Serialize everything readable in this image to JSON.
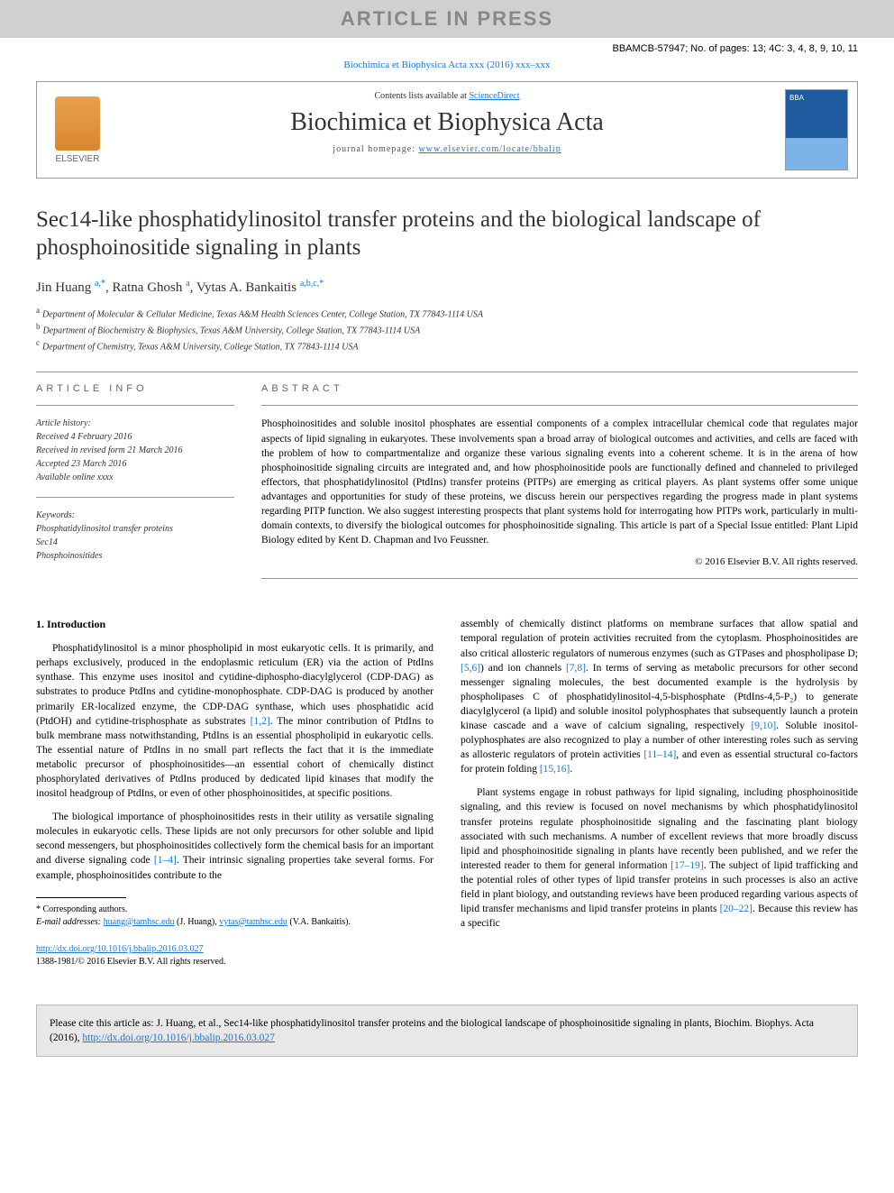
{
  "banner": "ARTICLE IN PRESS",
  "corrected_proof": "BBAMCB-57947; No. of pages: 13; 4C: 3, 4, 8, 9, 10, 11",
  "journal_ref": "Biochimica et Biophysica Acta xxx (2016) xxx–xxx",
  "header": {
    "publisher": "ELSEVIER",
    "contents_prefix": "Contents lists available at ",
    "contents_link": "ScienceDirect",
    "journal_name": "Biochimica et Biophysica Acta",
    "homepage_prefix": "journal homepage: ",
    "homepage_url": "www.elsevier.com/locate/bbalip"
  },
  "title": "Sec14-like phosphatidylinositol transfer proteins and the biological landscape of phosphoinositide signaling in plants",
  "authors_html": "Jin Huang <sup>a,*</sup>, Ratna Ghosh <sup>a</sup>, Vytas A. Bankaitis <sup>a,b,c,*</sup>",
  "affiliations": [
    {
      "sup": "a",
      "text": "Department of Molecular & Cellular Medicine, Texas A&M Health Sciences Center, College Station, TX 77843-1114 USA"
    },
    {
      "sup": "b",
      "text": "Department of Biochemistry & Biophysics, Texas A&M University, College Station, TX 77843-1114 USA"
    },
    {
      "sup": "c",
      "text": "Department of Chemistry, Texas A&M University, College Station, TX 77843-1114 USA"
    }
  ],
  "article_info": {
    "label": "ARTICLE INFO",
    "history_label": "Article history:",
    "history": [
      "Received 4 February 2016",
      "Received in revised form 21 March 2016",
      "Accepted 23 March 2016",
      "Available online xxxx"
    ],
    "keywords_label": "Keywords:",
    "keywords": [
      "Phosphatidylinositol transfer proteins",
      "Sec14",
      "Phosphoinositides"
    ]
  },
  "abstract": {
    "label": "ABSTRACT",
    "text": "Phosphoinositides and soluble inositol phosphates are essential components of a complex intracellular chemical code that regulates major aspects of lipid signaling in eukaryotes. These involvements span a broad array of biological outcomes and activities, and cells are faced with the problem of how to compartmentalize and organize these various signaling events into a coherent scheme. It is in the arena of how phosphoinositide signaling circuits are integrated and, and how phosphoinositide pools are functionally defined and channeled to privileged effectors, that phosphatidylinositol (PtdIns) transfer proteins (PITPs) are emerging as critical players. As plant systems offer some unique advantages and opportunities for study of these proteins, we discuss herein our perspectives regarding the progress made in plant systems regarding PITP function. We also suggest interesting prospects that plant systems hold for interrogating how PITPs work, particularly in multi-domain contexts, to diversify the biological outcomes for phosphoinositide signaling. This article is part of a Special Issue entitled: Plant Lipid Biology edited by Kent D. Chapman and Ivo Feussner.",
    "copyright": "© 2016 Elsevier B.V. All rights reserved."
  },
  "intro": {
    "heading": "1. Introduction",
    "col1": [
      "Phosphatidylinositol is a minor phospholipid in most eukaryotic cells. It is primarily, and perhaps exclusively, produced in the endoplasmic reticulum (ER) via the action of PtdIns synthase. This enzyme uses inositol and cytidine-diphospho-diacylglycerol (CDP-DAG) as substrates to produce PtdIns and cytidine-monophosphate. CDP-DAG is produced by another primarily ER-localized enzyme, the CDP-DAG synthase, which uses phosphatidic acid (PtdOH) and cytidine-trisphosphate as substrates [1,2]. The minor contribution of PtdIns to bulk membrane mass notwithstanding, PtdIns is an essential phospholipid in eukaryotic cells. The essential nature of PtdIns in no small part reflects the fact that it is the immediate metabolic precursor of phosphoinositides—an essential cohort of chemically distinct phosphorylated derivatives of PtdIns produced by dedicated lipid kinases that modify the inositol headgroup of PtdIns, or even of other phosphoinositides, at specific positions.",
      "The biological importance of phosphoinositides rests in their utility as versatile signaling molecules in eukaryotic cells. These lipids are not only precursors for other soluble and lipid second messengers, but phosphoinositides collectively form the chemical basis for an important and diverse signaling code [1–4]. Their intrinsic signaling properties take several forms. For example, phosphoinositides contribute to the"
    ],
    "col2": [
      "assembly of chemically distinct platforms on membrane surfaces that allow spatial and temporal regulation of protein activities recruited from the cytoplasm. Phosphoinositides are also critical allosteric regulators of numerous enzymes (such as GTPases and phospholipase D; [5,6]) and ion channels [7,8]. In terms of serving as metabolic precursors for other second messenger signaling molecules, the best documented example is the hydrolysis by phospholipases C of phosphatidylinositol-4,5-bisphosphate (PtdIns-4,5-P₂) to generate diacylglycerol (a lipid) and soluble inositol polyphosphates that subsequently launch a protein kinase cascade and a wave of calcium signaling, respectively [9,10]. Soluble inositol-polyphosphates are also recognized to play a number of other interesting roles such as serving as allosteric regulators of protein activities [11–14], and even as essential structural co-factors for protein folding [15,16].",
      "Plant systems engage in robust pathways for lipid signaling, including phosphoinositide signaling, and this review is focused on novel mechanisms by which phosphatidylinositol transfer proteins regulate phosphoinositide signaling and the fascinating plant biology associated with such mechanisms. A number of excellent reviews that more broadly discuss lipid and phosphoinositide signaling in plants have recently been published, and we refer the interested reader to them for general information [17–19]. The subject of lipid trafficking and the potential roles of other types of lipid transfer proteins in such processes is also an active field in plant biology, and outstanding reviews have been produced regarding various aspects of lipid transfer mechanisms and lipid transfer proteins in plants [20–22]. Because this review has a specific"
    ]
  },
  "corresponding": {
    "label": "* Corresponding authors.",
    "email_label": "E-mail addresses: ",
    "emails": "huang@tamhsc.edu (J. Huang), vytas@tamhsc.edu (V.A. Bankaitis)."
  },
  "doi": {
    "url": "http://dx.doi.org/10.1016/j.bbalip.2016.03.027",
    "issn_line": "1388-1981/© 2016 Elsevier B.V. All rights reserved."
  },
  "cite_box": {
    "text": "Please cite this article as: J. Huang, et al., Sec14-like phosphatidylinositol transfer proteins and the biological landscape of phosphoinositide signaling in plants, Biochim. Biophys. Acta (2016), ",
    "url": "http://dx.doi.org/10.1016/j.bbalip.2016.03.027"
  },
  "refs": {
    "r12": "[1,2]",
    "r14": "[1–4]",
    "r56": "[5,6]",
    "r78": "[7,8]",
    "r910": "[9,10]",
    "r1114": "[11–14]",
    "r1516": "[15,16]",
    "r1719": "[17–19]",
    "r2022": "[20–22]"
  },
  "colors": {
    "link": "#1976d2",
    "banner_bg": "#d0d0d0",
    "banner_fg": "#888888",
    "citebox_bg": "#e8e8e8"
  }
}
